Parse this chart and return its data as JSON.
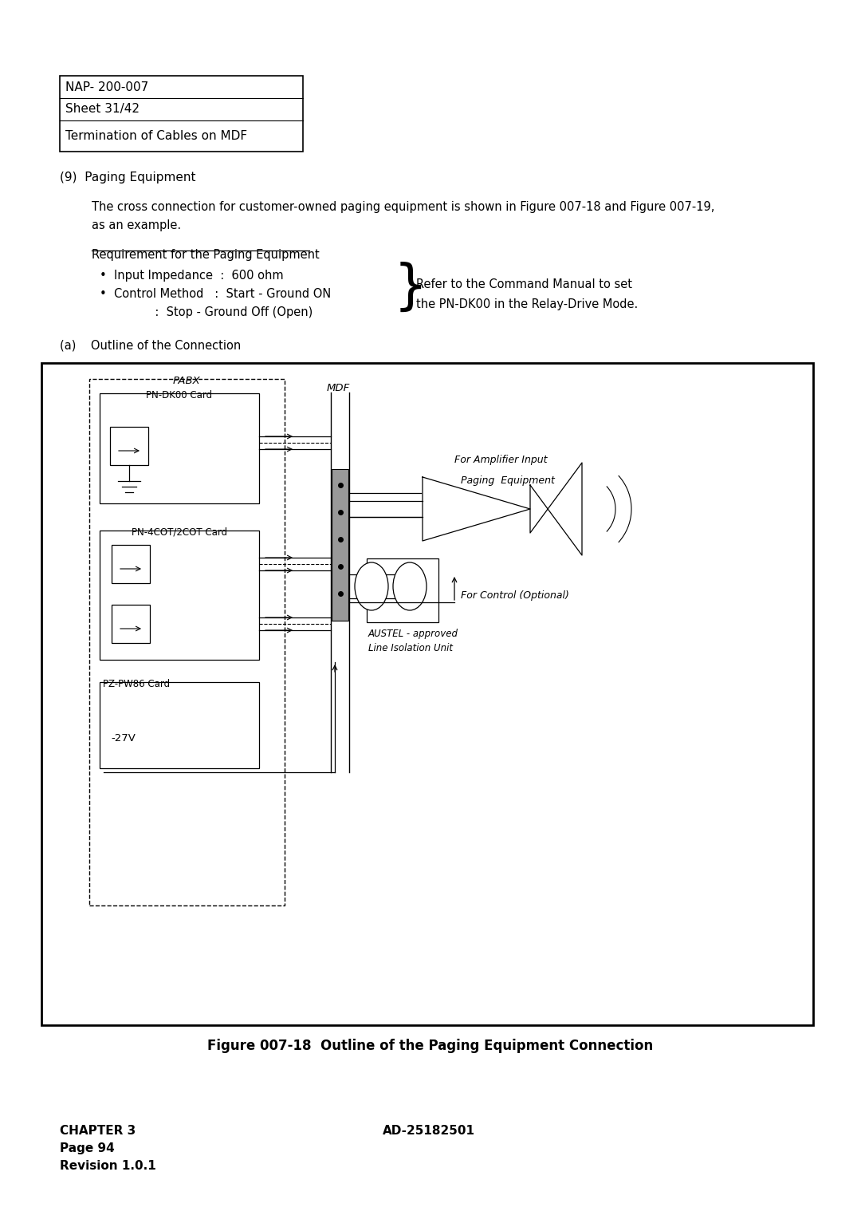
{
  "bg_color": "#ffffff",
  "header_rows": [
    "NAP- 200-007",
    "Sheet 31/42",
    "Termination of Cables on MDF"
  ],
  "section_heading": "(9)  Paging Equipment",
  "para1_line1": "The cross connection for customer-owned paging equipment is shown in Figure 007-18 and Figure 007-19,",
  "para1_line2": "as an example.",
  "req_title": "Requirement for the Paging Equipment",
  "bullet1": "•  Input Impedance  :  600 ohm",
  "bullet2": "•  Control Method   :  Start - Ground ON",
  "sub_bullet": "               :  Stop - Ground Off (Open)",
  "brace_text1": "Refer to the Command Manual to set",
  "brace_text2": "the PN-DK00 in the Relay-Drive Mode.",
  "outline_label": "(a)    Outline of the Connection",
  "fig_caption": "Figure 007-18  Outline of the Paging Equipment Connection",
  "footer_left": "CHAPTER 3\nPage 94\nRevision 1.0.1",
  "footer_right": "AD-25182501",
  "pabx_label": "PABX",
  "mdf_label": "MDF",
  "pn_dk00": "PN-DK00 Card",
  "pn_4cot": "PN-4COT/2COT Card",
  "pz_pw86": "PZ-PW86 Card",
  "v27": "-27V",
  "amp_input": "For Amplifier Input",
  "paging_eq": "Paging  Equipment",
  "for_control": "For Control (Optional)",
  "austel": "AUSTEL - approved\nLine Isolation Unit"
}
